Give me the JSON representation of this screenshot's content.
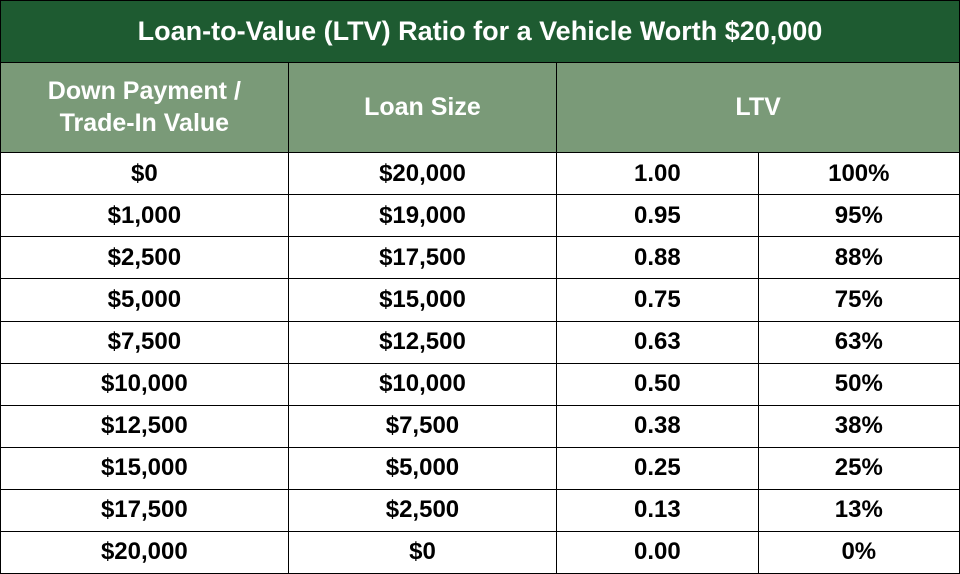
{
  "title": "Loan-to-Value (LTV) Ratio for a Vehicle Worth $20,000",
  "headers": {
    "col0": "Down Payment /\nTrade-In Value",
    "col1": "Loan Size",
    "col2": "LTV"
  },
  "columns": {
    "count": 4,
    "header_spans": [
      1,
      1,
      2
    ],
    "widths_pct": [
      30,
      28,
      21,
      21
    ]
  },
  "rows": [
    {
      "down": "$0",
      "loan": "$20,000",
      "ratio": "1.00",
      "pct": "100%"
    },
    {
      "down": "$1,000",
      "loan": "$19,000",
      "ratio": "0.95",
      "pct": "95%"
    },
    {
      "down": "$2,500",
      "loan": "$17,500",
      "ratio": "0.88",
      "pct": "88%"
    },
    {
      "down": "$5,000",
      "loan": "$15,000",
      "ratio": "0.75",
      "pct": "75%"
    },
    {
      "down": "$7,500",
      "loan": "$12,500",
      "ratio": "0.63",
      "pct": "63%"
    },
    {
      "down": "$10,000",
      "loan": "$10,000",
      "ratio": "0.50",
      "pct": "50%"
    },
    {
      "down": "$12,500",
      "loan": "$7,500",
      "ratio": "0.38",
      "pct": "38%"
    },
    {
      "down": "$15,000",
      "loan": "$5,000",
      "ratio": "0.25",
      "pct": "25%"
    },
    {
      "down": "$17,500",
      "loan": "$2,500",
      "ratio": "0.13",
      "pct": "13%"
    },
    {
      "down": "$20,000",
      "loan": "$0",
      "ratio": "0.00",
      "pct": "0%"
    }
  ],
  "style": {
    "title_bg": "#1e5b31",
    "title_fg": "#ffffff",
    "header_bg": "#7a9a78",
    "header_fg": "#ffffff",
    "row_bg": "#ffffff",
    "row_fg": "#000000",
    "border_color": "#000000"
  }
}
